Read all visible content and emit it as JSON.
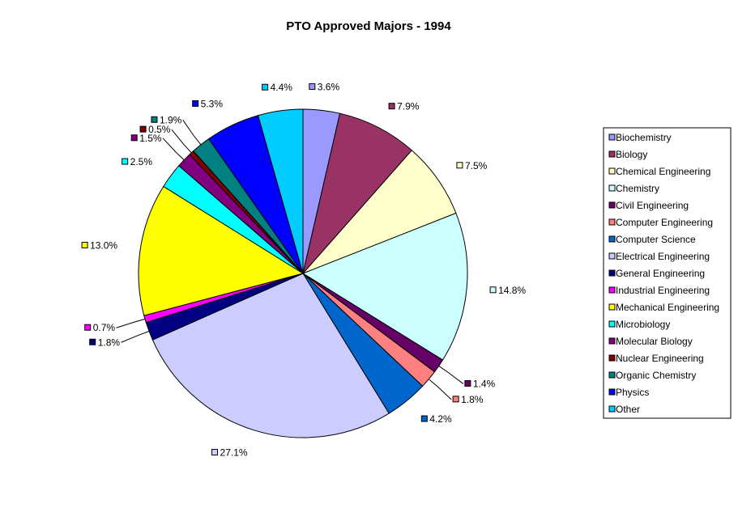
{
  "chart_data": {
    "type": "pie",
    "title": "PTO Approved Majors - 1994",
    "categories": [
      "Biochemistry",
      "Biology",
      "Chemical Engineering",
      "Chemistry",
      "Civil Engineering",
      "Computer Engineering",
      "Computer Science",
      "Electrical Engineering",
      "General Engineering",
      "Industrial Engineering",
      "Mechanical Engineering",
      "Microbiology",
      "Molecular Biology",
      "Nuclear Engineering",
      "Organic Chemistry",
      "Physics",
      "Other"
    ],
    "values": [
      3.6,
      7.9,
      7.5,
      14.8,
      1.4,
      1.8,
      4.2,
      27.1,
      1.8,
      0.7,
      13.0,
      2.5,
      1.5,
      0.5,
      1.9,
      5.3,
      4.4
    ],
    "labels": [
      "3.6%",
      "7.9%",
      "7.5%",
      "14.8%",
      "1.4%",
      "1.8%",
      "4.2%",
      "27.1%",
      "1.8%",
      "0.7%",
      "13.0%",
      "2.5%",
      "1.5%",
      "0.5%",
      "1.9%",
      "5.3%",
      "4.4%"
    ],
    "colors": [
      "#9999ff",
      "#993366",
      "#ffffcc",
      "#ccffff",
      "#660066",
      "#ff8080",
      "#0066cc",
      "#ccccff",
      "#000080",
      "#ff00ff",
      "#ffff00",
      "#00ffff",
      "#800080",
      "#800000",
      "#008080",
      "#0000ff",
      "#00ccff"
    ],
    "start_angle": "12 o'clock",
    "direction": "clockwise",
    "legend_position": "right",
    "grid": false
  }
}
